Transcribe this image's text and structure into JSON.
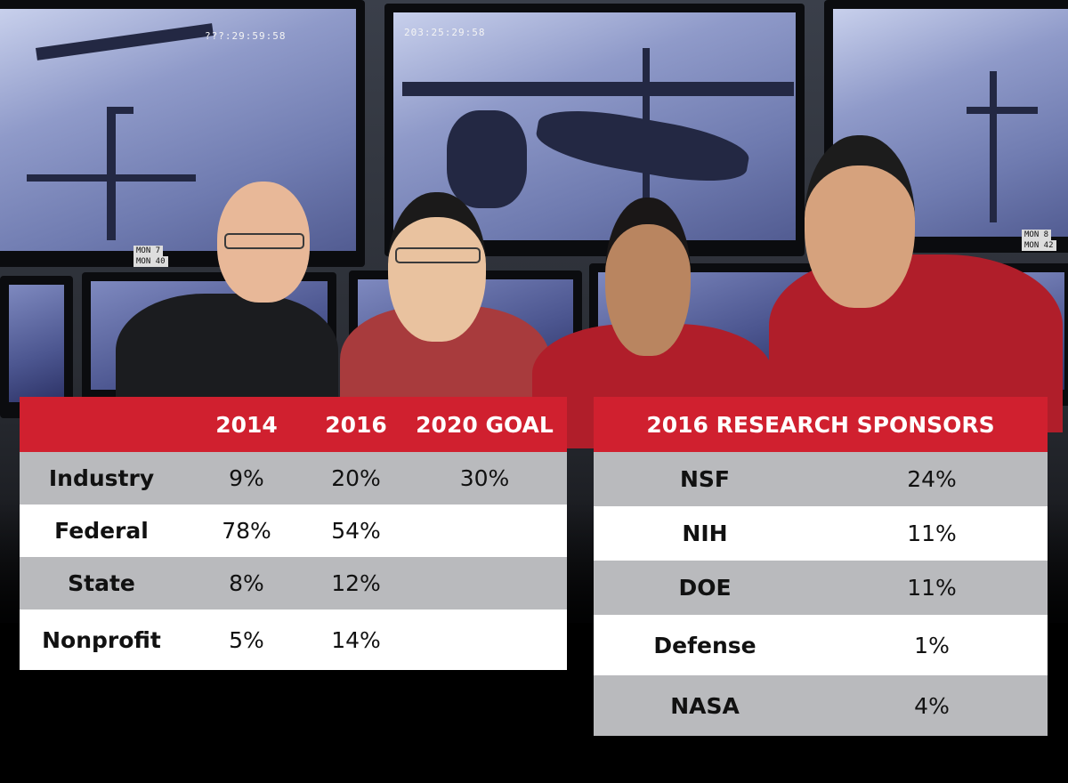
{
  "photo": {
    "monitor_timestamps": [
      "???:29:59:58",
      "203:25:29:58"
    ],
    "monitor_tags": [
      "MON 7",
      "MON 40",
      "MON 8",
      "MON 42"
    ]
  },
  "funding_table": {
    "headers": [
      "",
      "2014",
      "2016",
      "2020 GOAL"
    ],
    "rows": [
      {
        "label": "Industry",
        "y2014": "9%",
        "y2016": "20%",
        "goal2020": "30%"
      },
      {
        "label": "Federal",
        "y2014": "78%",
        "y2016": "54%",
        "goal2020": ""
      },
      {
        "label": "State",
        "y2014": "8%",
        "y2016": "12%",
        "goal2020": ""
      },
      {
        "label": "Nonprofit",
        "y2014": "5%",
        "y2016": "14%",
        "goal2020": ""
      }
    ]
  },
  "sponsors_table": {
    "title": "2016 RESEARCH SPONSORS",
    "rows": [
      {
        "sponsor": "NSF",
        "share": "24%"
      },
      {
        "sponsor": "NIH",
        "share": "11%"
      },
      {
        "sponsor": "DOE",
        "share": "11%"
      },
      {
        "sponsor": "Defense",
        "share": "1%"
      },
      {
        "sponsor": "NASA",
        "share": "4%"
      }
    ]
  },
  "colors": {
    "header_red": "#d0202f",
    "row_gray": "#b9babd",
    "row_white": "#ffffff",
    "shirt_red": "#b01e2a"
  }
}
